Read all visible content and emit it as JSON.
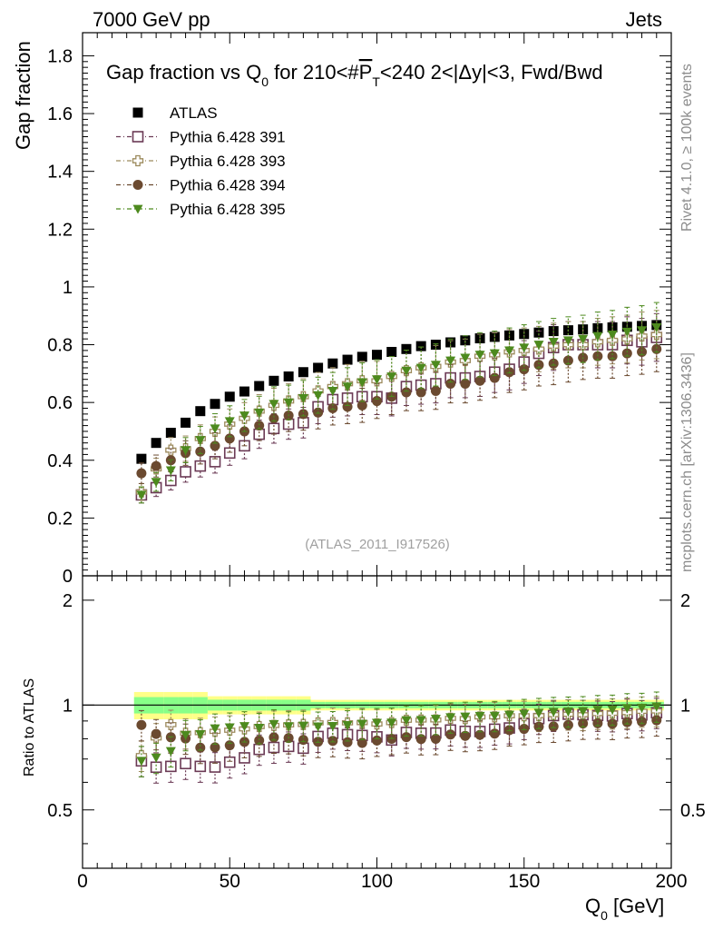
{
  "header": {
    "left": "7000 GeV pp",
    "right": "Jets"
  },
  "side_labels": {
    "rivet": "Rivet 4.1.0, ≥ 100k events",
    "mcplots": "mcplots.cern.ch [arXiv:1306.3436]"
  },
  "watermark": "(ATLAS_2011_I917526)",
  "colors": {
    "atlas": "#000000",
    "p391": "#6b3a55",
    "p393": "#9c8a5c",
    "p394": "#6b4a30",
    "p395": "#4d8a1e",
    "band_yellow": "#ffff88",
    "band_green": "#88ff88"
  },
  "chart_data": {
    "type": "scatter",
    "title_parts": {
      "pre": "Gap fraction vs Q",
      "sub": "0",
      "mid": " for 210<#",
      "pt": "P",
      "pt_sub": "T",
      "post": "<240  2<|Δy|<3, Fwd/Bwd"
    },
    "xlabel_main": "Q",
    "xlabel_sub": "0",
    "xlabel_unit": " [GeV]",
    "xlim": [
      0,
      200
    ],
    "xticks": [
      "0",
      "50",
      "100",
      "150",
      "200"
    ],
    "main": {
      "ylabel": "Gap fraction",
      "ylim": [
        0,
        1.88
      ],
      "yticks": [
        "0",
        "0.2",
        "0.4",
        "0.6",
        "0.8",
        "1",
        "1.2",
        "1.4",
        "1.6",
        "1.8"
      ]
    },
    "ratio": {
      "ylabel": "Ratio to ATLAS",
      "ylim": [
        0.34,
        2.35
      ],
      "yticks_left": [
        "0.5",
        "1",
        "2"
      ],
      "yticks_right": [
        "0.5",
        "1",
        "2"
      ]
    },
    "x": [
      20,
      25,
      30,
      35,
      40,
      45,
      50,
      55,
      60,
      65,
      70,
      75,
      80,
      85,
      90,
      95,
      100,
      105,
      110,
      115,
      120,
      125,
      130,
      135,
      140,
      145,
      150,
      155,
      160,
      165,
      170,
      175,
      180,
      185,
      190,
      195
    ],
    "series": [
      {
        "name": "ATLAS",
        "marker": "square-filled",
        "color_key": "atlas",
        "values": [
          0.405,
          0.46,
          0.495,
          0.53,
          0.57,
          0.595,
          0.62,
          0.638,
          0.657,
          0.675,
          0.69,
          0.705,
          0.72,
          0.735,
          0.748,
          0.758,
          0.765,
          0.775,
          0.785,
          0.795,
          0.8,
          0.808,
          0.815,
          0.822,
          0.827,
          0.832,
          0.837,
          0.842,
          0.847,
          0.85,
          0.853,
          0.857,
          0.86,
          0.862,
          0.865,
          0.868
        ]
      },
      {
        "name": "Pythia 6.428 391",
        "marker": "square-open",
        "color_key": "p391",
        "values": [
          0.28,
          0.305,
          0.33,
          0.36,
          0.38,
          0.395,
          0.425,
          0.45,
          0.49,
          0.51,
          0.525,
          0.53,
          0.585,
          0.61,
          0.615,
          0.62,
          0.62,
          0.615,
          0.655,
          0.66,
          0.665,
          0.685,
          0.685,
          0.69,
          0.705,
          0.715,
          0.74,
          0.77,
          0.79,
          0.8,
          0.8,
          0.8,
          0.8,
          0.815,
          0.81,
          0.825
        ]
      },
      {
        "name": "Pythia 6.428 393",
        "marker": "plus-open",
        "color_key": "p393",
        "values": [
          0.29,
          0.37,
          0.435,
          0.44,
          0.475,
          0.5,
          0.525,
          0.545,
          0.57,
          0.59,
          0.605,
          0.62,
          0.64,
          0.655,
          0.665,
          0.675,
          0.675,
          0.69,
          0.71,
          0.72,
          0.725,
          0.74,
          0.745,
          0.76,
          0.765,
          0.775,
          0.78,
          0.785,
          0.795,
          0.8,
          0.8,
          0.81,
          0.815,
          0.82,
          0.83,
          0.835
        ]
      },
      {
        "name": "Pythia 6.428 394",
        "marker": "circle-filled",
        "color_key": "p394",
        "values": [
          0.355,
          0.38,
          0.4,
          0.425,
          0.43,
          0.45,
          0.475,
          0.5,
          0.52,
          0.545,
          0.555,
          0.56,
          0.565,
          0.58,
          0.585,
          0.59,
          0.605,
          0.62,
          0.635,
          0.635,
          0.64,
          0.665,
          0.665,
          0.675,
          0.685,
          0.705,
          0.715,
          0.73,
          0.735,
          0.745,
          0.755,
          0.76,
          0.76,
          0.77,
          0.775,
          0.785
        ]
      },
      {
        "name": "Pythia 6.428 395",
        "marker": "triangle-down-filled",
        "color_key": "p395",
        "values": [
          0.28,
          0.325,
          0.365,
          0.435,
          0.47,
          0.51,
          0.535,
          0.555,
          0.565,
          0.595,
          0.6,
          0.615,
          0.625,
          0.64,
          0.655,
          0.67,
          0.68,
          0.69,
          0.71,
          0.72,
          0.73,
          0.745,
          0.755,
          0.765,
          0.77,
          0.78,
          0.79,
          0.8,
          0.81,
          0.815,
          0.82,
          0.83,
          0.835,
          0.845,
          0.85,
          0.86
        ]
      }
    ]
  }
}
